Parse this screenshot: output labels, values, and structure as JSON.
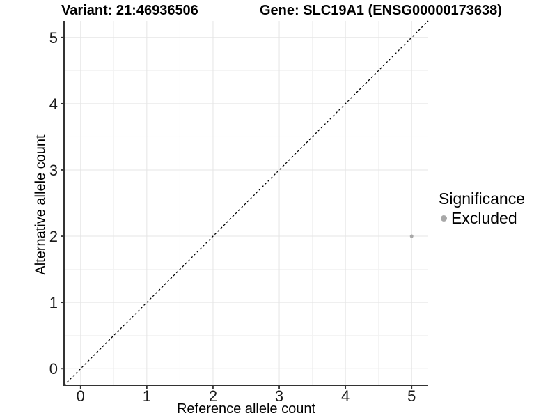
{
  "figure": {
    "variant_title": "Variant: 21:46936506",
    "gene_title": "Gene: SLC19A1 (ENSG00000173638)"
  },
  "axes": {
    "x_title": "Reference allele count",
    "y_title": "Alternative allele count"
  },
  "legend": {
    "title": "Significance",
    "items": [
      {
        "label": "Excluded",
        "color": "#a8a8a8"
      }
    ]
  },
  "chart_data": {
    "type": "scatter",
    "titles": [
      "Variant: 21:46936506",
      "Gene: SLC19A1 (ENSG00000173638)"
    ],
    "xlabel": "Reference allele count",
    "ylabel": "Alternative allele count",
    "xlim": [
      -0.25,
      5.25
    ],
    "ylim": [
      -0.25,
      5.25
    ],
    "x_ticks": [
      0,
      1,
      2,
      3,
      4,
      5
    ],
    "y_ticks": [
      0,
      1,
      2,
      3,
      4,
      5
    ],
    "x_minor": [
      0.5,
      1.5,
      2.5,
      3.5,
      4.5
    ],
    "y_minor": [
      0.5,
      1.5,
      2.5,
      3.5,
      4.5
    ],
    "grid": true,
    "legend_position": "right",
    "series": [
      {
        "name": "Excluded",
        "color": "#a8a8a8",
        "point_radius": 2.5,
        "points": [
          {
            "x": 5,
            "y": 2
          }
        ]
      }
    ],
    "reference_line": {
      "type": "identity",
      "slope": 1,
      "intercept": 0,
      "style": "dashed",
      "color": "#000000"
    },
    "colors": {
      "grid_major": "#e5e5e5",
      "grid_minor": "#f2f2f2",
      "axis_line": "#333333",
      "tick_mark": "#333333",
      "tick_text": "#1a1a1a",
      "background": "#ffffff"
    }
  }
}
